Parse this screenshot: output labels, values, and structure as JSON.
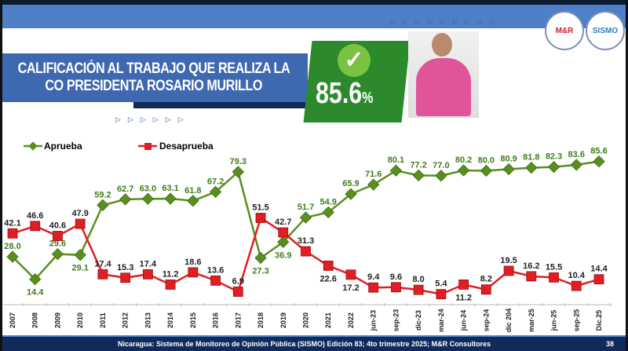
{
  "header": {
    "title_line1": "CALIFICACIÓN AL TRABAJO QUE REALIZA LA",
    "title_line2": "CO PRESIDENTA ROSARIO MURILLO",
    "highlight_value": "85.6",
    "highlight_unit": "%",
    "logos": [
      "M&R",
      "SISMO"
    ]
  },
  "colors": {
    "aprueba": "#5a8f1e",
    "desaprueba": "#e01e24",
    "header_blue": "#4f7fc6",
    "navy": "#0f2b5c",
    "green_panel": "#2c8a2c"
  },
  "footer": {
    "source": "Nicaragua: Sistema de Monitoreo de Opinión Pública (SISMO) Edición 83; 4to trimestre 2025; M&R Consultores",
    "page": "38"
  },
  "chart_data": {
    "type": "line",
    "categories": [
      "2007",
      "2008",
      "2009",
      "2010",
      "2011",
      "2012",
      "2013",
      "2014",
      "2015",
      "2016",
      "2017",
      "2018",
      "2019",
      "2020",
      "2021",
      "2022",
      "jun-23",
      "sep-23",
      "dic-23",
      "mar-24",
      "jun-24",
      "sep-24",
      "dic 204",
      "mar-25",
      "jun-25",
      "sep-25",
      "Dic.25"
    ],
    "series": [
      {
        "name": "Aprueba",
        "marker": "diamond",
        "values": [
          28.0,
          14.4,
          29.6,
          29.1,
          59.2,
          62.7,
          63.0,
          63.1,
          61.8,
          67.2,
          79.3,
          27.3,
          36.9,
          51.7,
          54.9,
          65.9,
          71.6,
          80.1,
          77.2,
          77.0,
          80.2,
          80.0,
          80.9,
          81.8,
          82.3,
          83.6,
          85.6
        ]
      },
      {
        "name": "Desaprueba",
        "marker": "square",
        "values": [
          42.1,
          46.6,
          40.6,
          47.9,
          17.4,
          15.3,
          17.4,
          11.2,
          18.6,
          13.6,
          6.9,
          51.5,
          42.7,
          31.3,
          22.6,
          17.2,
          9.4,
          9.6,
          8.0,
          5.4,
          11.2,
          8.2,
          19.5,
          16.2,
          15.5,
          10.4,
          14.4
        ]
      }
    ],
    "legend": "top-left",
    "grid": false,
    "data_labels": true
  }
}
